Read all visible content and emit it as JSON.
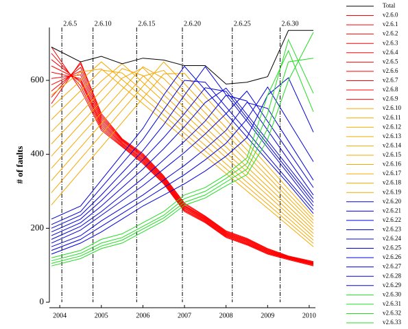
{
  "chart_data": {
    "type": "line",
    "y_label": "# of faults",
    "x": [
      2003.8,
      2004.5,
      2005,
      2005.5,
      2006,
      2006.5,
      2007,
      2007.5,
      2008,
      2008.5,
      2009,
      2009.5,
      2010.1
    ],
    "xlim": [
      2003.75,
      2010.15
    ],
    "xticks": [
      2004,
      2005,
      2006,
      2007,
      2008,
      2009,
      2010
    ],
    "ylim": [
      0,
      743
    ],
    "yticks": [
      0,
      200,
      400,
      600
    ],
    "annotations": [
      {
        "label": "2.6.5",
        "x": 2004.05
      },
      {
        "label": "2.6.10",
        "x": 2004.8
      },
      {
        "label": "2.6.15",
        "x": 2005.85
      },
      {
        "label": "2.6.20",
        "x": 2006.95
      },
      {
        "label": "2.6.25",
        "x": 2008.15
      },
      {
        "label": "2.6.30",
        "x": 2009.3
      }
    ],
    "series": [
      {
        "name": "Total",
        "color": "#000000",
        "values": [
          690,
          650,
          665,
          645,
          660,
          655,
          640,
          640,
          590,
          595,
          610,
          735,
          735
        ]
      },
      {
        "name": "v2.6.0",
        "color": "#ff0000",
        "values": [
          690,
          575,
          465,
          420,
          375,
          320,
          245,
          215,
          175,
          155,
          130,
          115,
          98
        ]
      },
      {
        "name": "v2.6.1",
        "color": "#ff0000",
        "values": [
          673,
          585,
          470,
          422,
          378,
          322,
          248,
          217,
          177,
          157,
          132,
          117,
          100
        ]
      },
      {
        "name": "v2.6.2",
        "color": "#ff0000",
        "values": [
          656,
          595,
          475,
          425,
          381,
          325,
          250,
          219,
          179,
          159,
          134,
          118,
          102
        ]
      },
      {
        "name": "v2.6.3",
        "color": "#ff0000",
        "values": [
          639,
          600,
          480,
          428,
          384,
          327,
          253,
          221,
          181,
          161,
          135,
          119,
          103
        ]
      },
      {
        "name": "v2.6.4",
        "color": "#ff0000",
        "values": [
          622,
          605,
          485,
          430,
          387,
          330,
          255,
          223,
          183,
          163,
          137,
          120,
          104
        ]
      },
      {
        "name": "v2.6.5",
        "color": "#ff0000",
        "values": [
          605,
          615,
          490,
          433,
          390,
          332,
          258,
          225,
          185,
          165,
          138,
          121,
          105
        ]
      },
      {
        "name": "v2.6.6",
        "color": "#ff0000",
        "values": [
          588,
          625,
          495,
          436,
          393,
          335,
          260,
          227,
          187,
          167,
          140,
          122,
          106
        ]
      },
      {
        "name": "v2.6.7",
        "color": "#ff0000",
        "values": [
          571,
          635,
          500,
          438,
          396,
          337,
          262,
          229,
          189,
          169,
          141,
          123,
          107
        ]
      },
      {
        "name": "v2.6.8",
        "color": "#ff0000",
        "values": [
          554,
          645,
          505,
          440,
          399,
          340,
          265,
          231,
          191,
          171,
          143,
          124,
          108
        ]
      },
      {
        "name": "v2.6.9",
        "color": "#ff0000",
        "values": [
          537,
          650,
          510,
          442,
          402,
          342,
          268,
          233,
          193,
          173,
          145,
          125,
          110
        ]
      },
      {
        "name": "v2.6.10",
        "color": "#f5a800",
        "values": [
          560,
          623,
          631,
          584,
          537,
          490,
          443,
          395,
          348,
          301,
          254,
          207,
          150
        ]
      },
      {
        "name": "v2.6.11",
        "color": "#f5a800",
        "values": [
          527,
          599,
          650,
          602,
          554,
          506,
          457,
          409,
          361,
          313,
          265,
          217,
          159
        ]
      },
      {
        "name": "v2.6.12",
        "color": "#f5a800",
        "values": [
          494,
          572,
          628,
          620,
          571,
          522,
          473,
          424,
          374,
          325,
          276,
          227,
          168
        ]
      },
      {
        "name": "v2.6.13",
        "color": "#f5a800",
        "values": [
          461,
          541,
          598,
          645,
          594,
          543,
          492,
          442,
          391,
          340,
          289,
          238,
          177
        ]
      },
      {
        "name": "v2.6.14",
        "color": "#f5a800",
        "values": [
          428,
          512,
          572,
          632,
          613,
          561,
          509,
          457,
          405,
          353,
          301,
          248,
          186
        ]
      },
      {
        "name": "v2.6.15",
        "color": "#f5a800",
        "values": [
          395,
          482,
          544,
          606,
          634,
          580,
          527,
          473,
          420,
          366,
          313,
          259,
          195
        ]
      },
      {
        "name": "v2.6.16",
        "color": "#f5a800",
        "values": [
          362,
          450,
          512,
          575,
          637,
          605,
          550,
          494,
          438,
          382,
          327,
          271,
          204
        ]
      },
      {
        "name": "v2.6.17",
        "color": "#f5a800",
        "values": [
          329,
          419,
          483,
          547,
          611,
          627,
          570,
          512,
          455,
          397,
          340,
          282,
          213
        ]
      },
      {
        "name": "v2.6.18",
        "color": "#f5a800",
        "values": [
          296,
          388,
          453,
          519,
          584,
          650,
          591,
          531,
          472,
          412,
          353,
          293,
          222
        ]
      },
      {
        "name": "v2.6.19",
        "color": "#f5a800",
        "values": [
          263,
          355,
          420,
          486,
          552,
          617,
          619,
          556,
          494,
          431,
          369,
          306,
          231
        ]
      },
      {
        "name": "v2.6.20",
        "color": "#0000dd",
        "values": [
          225,
          260,
          330,
          400,
          470,
          560,
          638,
          574,
          510,
          447,
          383,
          320,
          240
        ]
      },
      {
        "name": "v2.6.21",
        "color": "#0000dd",
        "values": [
          210,
          245,
          310,
          375,
          440,
          520,
          600,
          595,
          528,
          462,
          395,
          329,
          250
        ]
      },
      {
        "name": "v2.6.22",
        "color": "#0000dd",
        "values": [
          200,
          235,
          290,
          350,
          410,
          480,
          560,
          637,
          561,
          490,
          418,
          347,
          260
        ]
      },
      {
        "name": "v2.6.23",
        "color": "#0000dd",
        "values": [
          190,
          225,
          275,
          330,
          385,
          445,
          510,
          580,
          570,
          499,
          427,
          356,
          270
        ]
      },
      {
        "name": "v2.6.24",
        "color": "#0000dd",
        "values": [
          180,
          215,
          260,
          310,
          360,
          415,
          475,
          540,
          579,
          508,
          437,
          366,
          280
        ]
      },
      {
        "name": "v2.6.25",
        "color": "#0000dd",
        "values": [
          170,
          205,
          245,
          290,
          335,
          385,
          435,
          490,
          560,
          544,
          465,
          385,
          290
        ]
      },
      {
        "name": "v2.6.26",
        "color": "#0000dd",
        "values": [
          160,
          195,
          235,
          275,
          315,
          360,
          405,
          455,
          510,
          571,
          489,
          408,
          310
        ]
      },
      {
        "name": "v2.6.27",
        "color": "#0000dd",
        "values": [
          150,
          180,
          220,
          255,
          290,
          330,
          370,
          415,
          465,
          540,
          524,
          436,
          330
        ]
      },
      {
        "name": "v2.6.28",
        "color": "#0000dd",
        "values": [
          140,
          170,
          205,
          240,
          275,
          310,
          345,
          385,
          430,
          495,
          582,
          490,
          380
        ]
      },
      {
        "name": "v2.6.29",
        "color": "#0000dd",
        "values": [
          130,
          160,
          190,
          225,
          260,
          290,
          320,
          355,
          395,
          445,
          560,
          607,
          460
        ]
      },
      {
        "name": "v2.6.30",
        "color": "#22dd22",
        "values": [
          120,
          140,
          170,
          185,
          215,
          245,
          290,
          310,
          345,
          390,
          560,
          680,
          515
        ]
      },
      {
        "name": "v2.6.31",
        "color": "#22dd22",
        "values": [
          112,
          132,
          160,
          175,
          205,
          235,
          280,
          300,
          335,
          375,
          510,
          710,
          565
        ]
      },
      {
        "name": "v2.6.32",
        "color": "#22dd22",
        "values": [
          105,
          125,
          152,
          168,
          198,
          228,
          270,
          290,
          325,
          360,
          470,
          650,
          660
        ]
      },
      {
        "name": "v2.6.33",
        "color": "#22dd22",
        "values": [
          98,
          118,
          145,
          160,
          190,
          220,
          262,
          282,
          315,
          345,
          440,
          600,
          730
        ]
      }
    ]
  }
}
